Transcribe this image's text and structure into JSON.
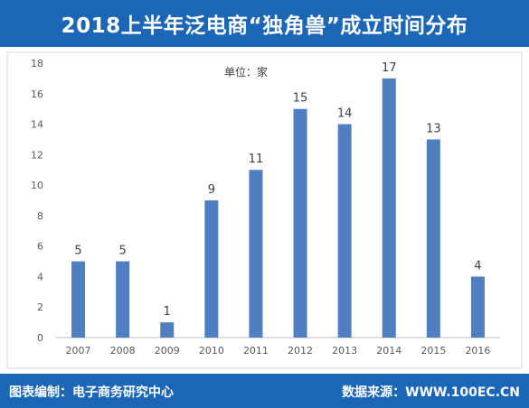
{
  "header": {
    "title": "2018上半年泛电商“独角兽”成立时间分布"
  },
  "footer": {
    "left_text": "图表编制：电子商务研究中心",
    "right_text": "数据来源：WWW.100EC.CN"
  },
  "colors": {
    "brand": "#1c66b8",
    "bar": "#4f7fc0"
  },
  "chart_data": {
    "type": "bar",
    "title": "",
    "annotation": "单位：家",
    "xlabel": "",
    "ylabel": "",
    "categories": [
      "2007",
      "2008",
      "2009",
      "2010",
      "2011",
      "2012",
      "2013",
      "2014",
      "2015",
      "2016"
    ],
    "values": [
      5,
      5,
      1,
      9,
      11,
      15,
      14,
      17,
      13,
      4
    ],
    "ylim": [
      0,
      18
    ],
    "yticks": [
      0,
      2,
      4,
      6,
      8,
      10,
      12,
      14,
      16,
      18
    ],
    "grid": false,
    "legend": "none"
  }
}
